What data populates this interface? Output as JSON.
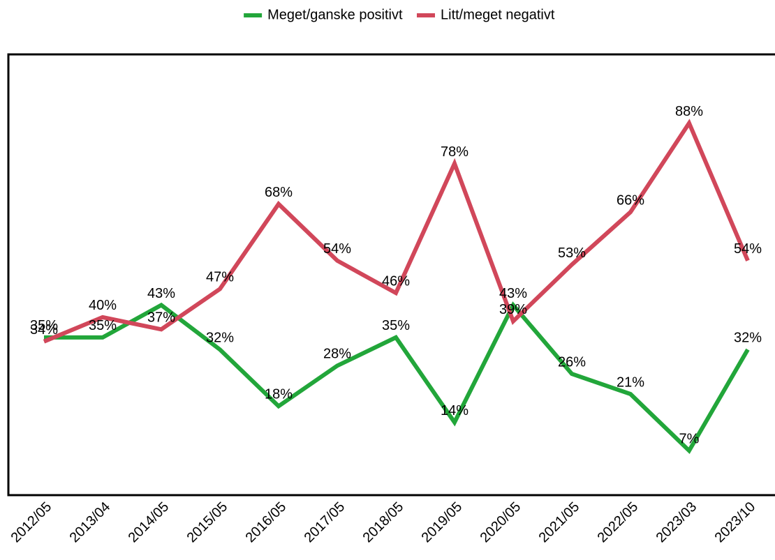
{
  "chart_data": {
    "type": "line",
    "categories": [
      "2012/05",
      "2013/04",
      "2014/05",
      "2015/05",
      "2016/05",
      "2017/05",
      "2018/05",
      "2019/05",
      "2020/05",
      "2021/05",
      "2022/05",
      "2023/03",
      "2023/10"
    ],
    "series": [
      {
        "name": "Meget/ganske positivt",
        "color": "#22a63a",
        "values": [
          35,
          35,
          43,
          32,
          18,
          28,
          35,
          14,
          43,
          26,
          21,
          7,
          32
        ],
        "value_labels": [
          "35%",
          "35%",
          "43%",
          "32%",
          "18%",
          "28%",
          "35%",
          "14%",
          "43%",
          "26%",
          "21%",
          "7%",
          "32%"
        ]
      },
      {
        "name": "Litt/meget negativt",
        "color": "#d1475a",
        "values": [
          34,
          40,
          37,
          47,
          68,
          54,
          46,
          78,
          39,
          53,
          66,
          88,
          54
        ],
        "value_labels": [
          "34%",
          "40%",
          "37%",
          "47%",
          "68%",
          "54%",
          "46%",
          "78%",
          "39%",
          "53%",
          "66%",
          "88%",
          "54%"
        ]
      }
    ],
    "ylim": [
      -4,
      105
    ],
    "legend": "top"
  }
}
